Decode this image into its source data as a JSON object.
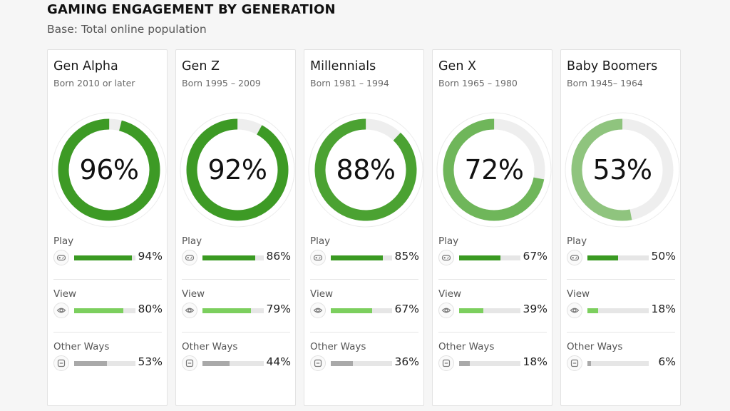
{
  "chart_data": {
    "type": "donut-with-bars",
    "title": "GAMING ENGAGEMENT BY GENERATION",
    "subtitle": "Base: Total online population",
    "metric_labels": [
      "Play",
      "View",
      "Other Ways"
    ],
    "generations": [
      {
        "name": "Gen Alpha",
        "born": "Born 2010 or later",
        "total": 96,
        "total_label": "96%",
        "metrics": [
          {
            "value": 94,
            "label": "94%"
          },
          {
            "value": 80,
            "label": "80%"
          },
          {
            "value": 53,
            "label": "53%"
          }
        ]
      },
      {
        "name": "Gen Z",
        "born": "Born 1995 – 2009",
        "total": 92,
        "total_label": "92%",
        "metrics": [
          {
            "value": 86,
            "label": "86%"
          },
          {
            "value": 79,
            "label": "79%"
          },
          {
            "value": 44,
            "label": "44%"
          }
        ]
      },
      {
        "name": "Millennials",
        "born": "Born 1981 – 1994",
        "total": 88,
        "total_label": "88%",
        "metrics": [
          {
            "value": 85,
            "label": "85%"
          },
          {
            "value": 67,
            "label": "67%"
          },
          {
            "value": 36,
            "label": "36%"
          }
        ]
      },
      {
        "name": "Gen X",
        "born": "Born 1965 – 1980",
        "total": 72,
        "total_label": "72%",
        "metrics": [
          {
            "value": 67,
            "label": "67%"
          },
          {
            "value": 39,
            "label": "39%"
          },
          {
            "value": 18,
            "label": "18%"
          }
        ]
      },
      {
        "name": "Baby Boomers",
        "born": "Born 1945– 1964",
        "total": 53,
        "total_label": "53%",
        "metrics": [
          {
            "value": 50,
            "label": "50%"
          },
          {
            "value": 18,
            "label": "18%"
          },
          {
            "value": 6,
            "label": "6%"
          }
        ]
      }
    ]
  },
  "colors": {
    "ring_track": "#eeeeee",
    "ring_shades": [
      "#3d9a25",
      "#3d9a25",
      "#4ba232",
      "#6fb65a",
      "#8fc47e"
    ],
    "play": "#3a9a22",
    "view": "#7ccf5e",
    "other": "#a9a9a9",
    "icon": "#777777"
  },
  "icons": {
    "play": "gamepad-icon",
    "view": "eye-icon",
    "other": "minus-square-icon"
  }
}
